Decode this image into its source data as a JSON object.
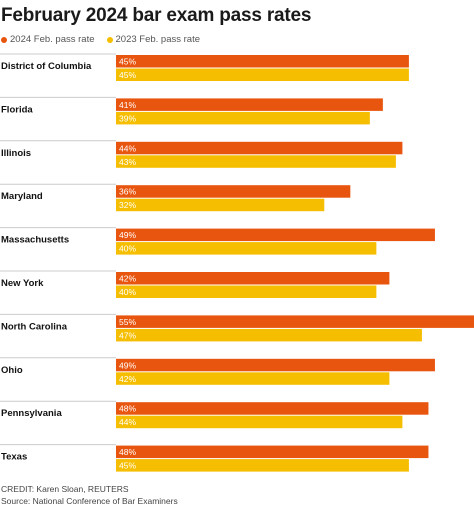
{
  "chart_data": {
    "type": "bar",
    "orientation": "horizontal",
    "title": "February 2024 bar exam pass rates",
    "categories": [
      "District of Columbia",
      "Florida",
      "Illinois",
      "Maryland",
      "Massachusetts",
      "New York",
      "North Carolina",
      "Ohio",
      "Pennsylvania",
      "Texas"
    ],
    "series": [
      {
        "name": "2024 Feb. pass rate",
        "color": "#e8550f",
        "values": [
          45,
          41,
          44,
          36,
          49,
          42,
          55,
          49,
          48,
          48
        ],
        "labels": [
          "45%",
          "41%",
          "44%",
          "36%",
          "49%",
          "42%",
          "55%",
          "49%",
          "48%",
          "48%"
        ]
      },
      {
        "name": "2023 Feb. pass rate",
        "color": "#f5be00",
        "values": [
          45,
          39,
          43,
          32,
          40,
          40,
          47,
          42,
          44,
          45
        ],
        "labels": [
          "45%",
          "39%",
          "43%",
          "32%",
          "40%",
          "40%",
          "47%",
          "42%",
          "44%",
          "45%"
        ]
      }
    ],
    "xlim": [
      0,
      55
    ],
    "grid": false,
    "legend": "top-left"
  },
  "footer": {
    "credit": "CREDIT: Karen Sloan, REUTERS",
    "source": "Source: National Conference of Bar Examiners"
  }
}
